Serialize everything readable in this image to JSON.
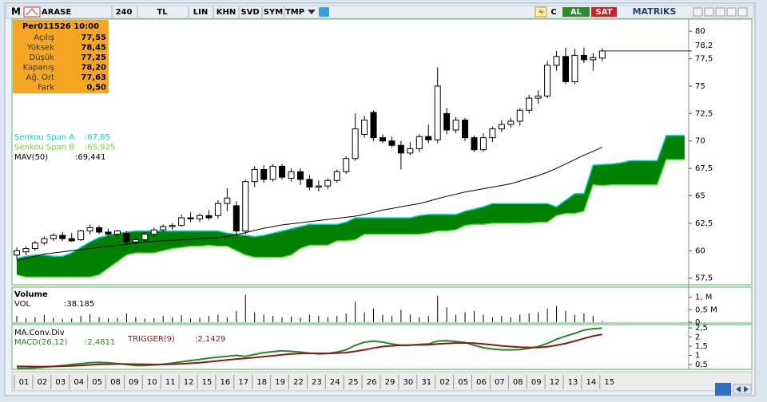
{
  "toolbar": {
    "logo": "M",
    "symbol": "ARASE",
    "period": "240",
    "currency": "TL",
    "buttons": [
      "LIN",
      "KHN",
      "SVD",
      "SYM",
      "TMP"
    ],
    "buy": "AL",
    "sell": "SAT",
    "brand": "MATRiKS"
  },
  "chart_data": [
    {
      "type": "candlestick",
      "info": {
        "title": "Per011526 10:00",
        "rows": [
          [
            "Açılış",
            "77,55"
          ],
          [
            "Yüksek",
            "78,45"
          ],
          [
            "Düşük",
            "77,25"
          ],
          [
            "Kapanış",
            "78,20"
          ],
          [
            "Ağ. Ort",
            "77,63"
          ],
          [
            "Fark",
            "0,50"
          ]
        ]
      },
      "categories": [
        "01",
        null,
        "02",
        null,
        "03",
        null,
        "04",
        null,
        "05",
        null,
        "08",
        null,
        "09",
        null,
        "10",
        null,
        "11",
        null,
        "12",
        null,
        "15",
        null,
        "16",
        null,
        "17",
        null,
        "18",
        null,
        "19",
        null,
        "22",
        null,
        "23",
        null,
        "24",
        null,
        "25",
        null,
        "26",
        null,
        "29",
        null,
        "30",
        null,
        "31",
        null,
        "02",
        null,
        "05",
        null,
        "06",
        null,
        "07",
        null,
        "08",
        null,
        "09",
        null,
        "12",
        null,
        "13",
        null,
        "14",
        null,
        "15"
      ],
      "open": [
        59.6,
        59.9,
        60.2,
        60.7,
        61.1,
        61.4,
        61.1,
        61.0,
        61.8,
        62.1,
        61.7,
        61.5,
        61.6,
        60.8,
        61.0,
        61.5,
        61.9,
        62.2,
        62.3,
        63.0,
        62.9,
        63.2,
        63.2,
        64.3,
        64.1,
        61.8,
        66.3,
        67.4,
        66.5,
        67.7,
        66.6,
        67.2,
        66.5,
        65.8,
        65.9,
        66.4,
        67.2,
        68.4,
        70.6,
        72.6,
        70.3,
        70.0,
        69.6,
        68.9,
        69.3,
        70.4,
        70.1,
        72.5,
        71.0,
        71.9,
        70.3,
        69.2,
        70.3,
        71.1,
        71.5,
        71.8,
        72.8,
        73.9,
        74.1,
        76.9,
        77.7,
        75.4,
        77.8,
        77.4,
        77.55
      ],
      "high": [
        60.3,
        60.4,
        60.9,
        61.3,
        61.6,
        61.7,
        61.6,
        61.9,
        62.4,
        62.3,
        62.0,
        61.9,
        61.8,
        61.3,
        61.7,
        62.1,
        62.4,
        62.5,
        63.3,
        63.5,
        63.4,
        63.7,
        64.6,
        65.7,
        64.5,
        66.5,
        67.7,
        67.8,
        67.9,
        67.9,
        67.5,
        67.5,
        66.9,
        66.4,
        66.6,
        67.4,
        68.6,
        72.5,
        72.3,
        72.8,
        70.6,
        70.4,
        70.0,
        69.9,
        70.6,
        71.5,
        76.7,
        73.0,
        72.2,
        72.1,
        70.5,
        70.7,
        71.3,
        71.9,
        72.1,
        73.0,
        74.2,
        74.6,
        77.3,
        78.2,
        78.5,
        78.4,
        78.5,
        78.0,
        78.45
      ],
      "low": [
        59.2,
        59.6,
        60.0,
        60.5,
        60.9,
        60.9,
        60.8,
        60.9,
        61.5,
        61.5,
        61.2,
        61.3,
        60.5,
        60.6,
        60.9,
        61.3,
        61.7,
        61.9,
        62.2,
        62.6,
        62.6,
        62.8,
        62.9,
        63.6,
        61.4,
        61.5,
        65.8,
        66.2,
        66.3,
        66.5,
        66.3,
        66.0,
        65.5,
        65.4,
        65.6,
        66.2,
        67.0,
        68.2,
        70.3,
        70.0,
        69.8,
        69.4,
        67.4,
        68.7,
        69.0,
        69.8,
        69.8,
        70.6,
        70.7,
        70.0,
        69.0,
        69.0,
        69.9,
        70.8,
        71.2,
        71.4,
        72.5,
        73.4,
        73.9,
        76.4,
        75.2,
        75.2,
        77.1,
        76.4,
        77.25
      ],
      "close": [
        60.0,
        60.2,
        60.7,
        61.1,
        61.4,
        61.1,
        60.9,
        61.8,
        62.1,
        61.7,
        61.5,
        61.8,
        60.8,
        61.0,
        61.5,
        61.9,
        62.2,
        62.3,
        63.0,
        62.9,
        63.2,
        63.0,
        64.3,
        64.8,
        61.8,
        66.3,
        67.4,
        66.5,
        67.7,
        66.7,
        67.2,
        66.5,
        65.8,
        65.9,
        66.4,
        67.2,
        68.4,
        71.1,
        71.9,
        70.3,
        70.0,
        69.6,
        68.9,
        69.3,
        70.4,
        70.1,
        75.0,
        71.0,
        71.9,
        70.3,
        69.2,
        70.3,
        71.1,
        71.5,
        71.8,
        72.8,
        73.9,
        74.1,
        76.9,
        77.7,
        75.4,
        77.8,
        77.4,
        77.6,
        78.2
      ],
      "up_color": "#ffffff",
      "down_color": "#000000",
      "ylim": [
        56.9,
        81.1
      ],
      "yticks": [
        {
          "value": 57.5,
          "label": "57,5"
        },
        60,
        {
          "value": 62.5,
          "label": "62,5"
        },
        65,
        {
          "value": 67.5,
          "label": "67,5"
        },
        70,
        {
          "value": 72.5,
          "label": "72,5"
        },
        75,
        {
          "value": 77.5,
          "label": "77,5"
        },
        80
      ],
      "price_marker": {
        "value": 78.2,
        "label": "78,2"
      },
      "cloud": {
        "color": "#008000",
        "series": [
          {
            "name": "Senkou Span A",
            "last_label": ":67,85",
            "color": "#00d8d8",
            "values": [
              59.3,
              59.5,
              59.6,
              59.6,
              59.5,
              59.5,
              59.8,
              60.3,
              60.8,
              61.2,
              61.4,
              61.6,
              61.7,
              61.8,
              61.8,
              61.8,
              61.8,
              61.8,
              61.8,
              61.8,
              61.8,
              61.8,
              61.8,
              61.6,
              61.5,
              61.4,
              61.3,
              61.4,
              61.6,
              61.8,
              62.0,
              62.2,
              62.4,
              62.4,
              62.4,
              62.4,
              62.6,
              63.0,
              63.0,
              63.0,
              63.0,
              63.0,
              63.0,
              63.0,
              63.2,
              63.3,
              63.3,
              63.3,
              63.3,
              63.6,
              63.8,
              64.0,
              64.3,
              64.3,
              64.3,
              64.3,
              64.3,
              64.3,
              64.3,
              64.0,
              64.6,
              65.2,
              65.2,
              67.8,
              67.85,
              67.9,
              68.0,
              68.2,
              68.2,
              68.2,
              68.2,
              70.5,
              70.5,
              70.5
            ]
          },
          {
            "name": "Senkou Span B",
            "last_label": ":65,925",
            "color": "#66dd33",
            "values": [
              57.8,
              57.6,
              57.6,
              57.6,
              57.6,
              57.6,
              57.6,
              57.6,
              57.6,
              57.8,
              58.4,
              59.0,
              59.6,
              59.8,
              59.8,
              59.8,
              60.0,
              60.2,
              60.3,
              60.4,
              60.4,
              60.5,
              60.4,
              60.4,
              60.0,
              59.6,
              59.4,
              59.4,
              59.4,
              59.4,
              59.6,
              60.2,
              60.5,
              60.5,
              60.5,
              60.9,
              60.9,
              61.0,
              61.5,
              61.5,
              61.5,
              61.5,
              61.5,
              61.5,
              61.5,
              61.6,
              61.8,
              61.8,
              61.9,
              62.3,
              62.4,
              62.4,
              62.5,
              62.5,
              62.5,
              62.5,
              62.5,
              62.6,
              62.6,
              63.2,
              63.4,
              63.4,
              63.6,
              66.0,
              65.925,
              66.0,
              66.0,
              66.0,
              66.0,
              66.0,
              66.0,
              68.3,
              68.3,
              68.3
            ]
          }
        ]
      },
      "overlays": [
        {
          "name": "MAV(50)",
          "last_label": ":69,441",
          "color": "#000000",
          "values": [
            59.1,
            59.3,
            59.5,
            59.7,
            59.8,
            59.9,
            60.0,
            60.1,
            60.2,
            60.3,
            60.4,
            60.5,
            60.6,
            60.7,
            60.8,
            60.85,
            60.9,
            60.95,
            61.0,
            61.05,
            61.1,
            61.15,
            61.2,
            61.3,
            61.45,
            61.65,
            61.85,
            62.05,
            62.2,
            62.35,
            62.45,
            62.55,
            62.65,
            62.75,
            62.85,
            62.95,
            63.05,
            63.15,
            63.3,
            63.5,
            63.7,
            63.85,
            64.0,
            64.15,
            64.3,
            64.5,
            64.75,
            64.95,
            65.15,
            65.35,
            65.5,
            65.65,
            65.8,
            65.95,
            66.1,
            66.35,
            66.6,
            66.85,
            67.15,
            67.5,
            67.9,
            68.3,
            68.7,
            69.05,
            69.441
          ]
        }
      ]
    },
    {
      "type": "bar",
      "title": "Volume",
      "series": [
        {
          "name": "VOL",
          "last_label": ":38.185",
          "color": "#000000",
          "values": [
            250000,
            150000,
            200000,
            300000,
            180000,
            120000,
            150000,
            250000,
            320000,
            200000,
            150000,
            180000,
            350000,
            200000,
            150000,
            160000,
            250000,
            200000,
            280000,
            150000,
            180000,
            250000,
            300000,
            200000,
            450000,
            1100000,
            400000,
            300000,
            250000,
            200000,
            220000,
            180000,
            300000,
            250000,
            200000,
            250000,
            350000,
            820000,
            400000,
            550000,
            300000,
            250000,
            500000,
            300000,
            200000,
            250000,
            1050000,
            600000,
            300000,
            400000,
            450000,
            300000,
            200000,
            250000,
            200000,
            300000,
            350000,
            400000,
            550000,
            650000,
            450000,
            300000,
            350000,
            250000,
            38185
          ]
        }
      ],
      "ylim": [
        0,
        1340000
      ],
      "yticks": [
        0,
        {
          "value": 500000,
          "label": "0,5 M"
        },
        {
          "value": 1000000,
          "label": "1, M"
        }
      ]
    },
    {
      "type": "line",
      "title": "MA.Conv.Div",
      "series": [
        {
          "name": "MACD(26,12)",
          "last_label": ":2,4811",
          "color": "#228b22",
          "values": [
            0.3,
            0.3,
            0.32,
            0.36,
            0.4,
            0.45,
            0.5,
            0.55,
            0.6,
            0.62,
            0.6,
            0.55,
            0.5,
            0.45,
            0.45,
            0.48,
            0.52,
            0.58,
            0.65,
            0.72,
            0.78,
            0.85,
            0.9,
            0.95,
            1.0,
            0.95,
            1.05,
            1.15,
            1.2,
            1.25,
            1.22,
            1.18,
            1.12,
            1.08,
            1.1,
            1.18,
            1.3,
            1.55,
            1.72,
            1.78,
            1.72,
            1.62,
            1.55,
            1.55,
            1.6,
            1.62,
            1.78,
            1.8,
            1.75,
            1.7,
            1.55,
            1.42,
            1.35,
            1.3,
            1.3,
            1.32,
            1.38,
            1.48,
            1.65,
            1.88,
            2.05,
            2.2,
            2.38,
            2.45,
            2.4811
          ]
        },
        {
          "name": "TRIGGER(9)",
          "last_label": ":2,1429",
          "color": "#8b1a1a",
          "values": [
            0.4,
            0.4,
            0.39,
            0.39,
            0.4,
            0.41,
            0.43,
            0.45,
            0.48,
            0.51,
            0.52,
            0.53,
            0.53,
            0.52,
            0.51,
            0.5,
            0.5,
            0.52,
            0.54,
            0.57,
            0.6,
            0.65,
            0.7,
            0.75,
            0.8,
            0.84,
            0.88,
            0.93,
            0.98,
            1.03,
            1.08,
            1.1,
            1.11,
            1.11,
            1.11,
            1.12,
            1.15,
            1.22,
            1.3,
            1.4,
            1.48,
            1.52,
            1.55,
            1.56,
            1.57,
            1.58,
            1.62,
            1.65,
            1.67,
            1.68,
            1.66,
            1.62,
            1.57,
            1.52,
            1.48,
            1.45,
            1.43,
            1.43,
            1.47,
            1.55,
            1.65,
            1.78,
            1.92,
            2.05,
            2.1429
          ]
        }
      ],
      "ylim": [
        0.285,
        2.63
      ],
      "yticks": [
        {
          "value": 0.5,
          "label": "0,5"
        },
        1,
        {
          "value": 1.5,
          "label": "1,5"
        },
        2,
        {
          "value": 2.5,
          "label": "2,5"
        }
      ]
    }
  ]
}
